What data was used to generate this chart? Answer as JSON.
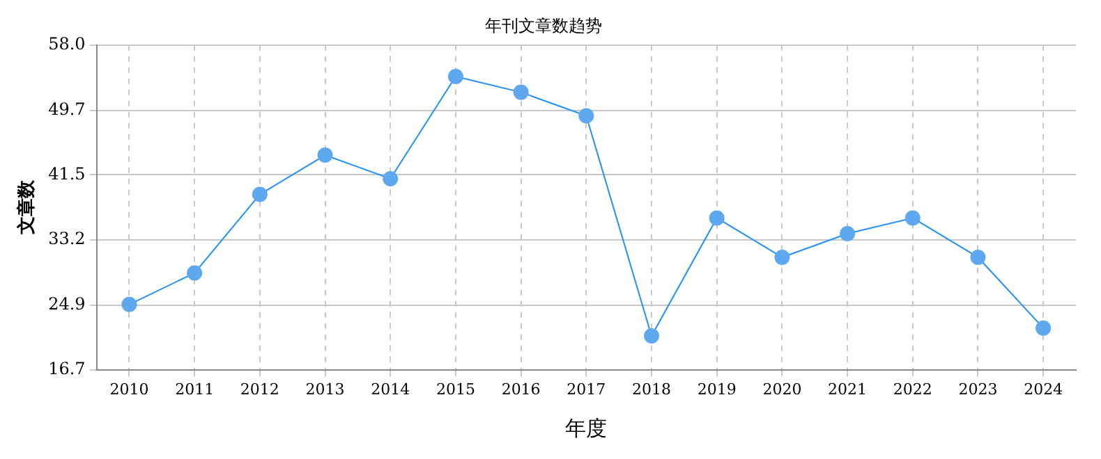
{
  "chart_data": {
    "type": "line",
    "title": "年刊文章数趋势",
    "xlabel": "年度",
    "ylabel": "文章数",
    "categories": [
      "2010",
      "2011",
      "2012",
      "2013",
      "2014",
      "2015",
      "2016",
      "2017",
      "2018",
      "2019",
      "2020",
      "2021",
      "2022",
      "2023",
      "2024"
    ],
    "series": [
      {
        "color": "#1e90ff",
        "values": [
          25,
          29,
          39,
          44,
          41,
          54,
          52,
          49,
          21,
          36,
          31,
          34,
          36,
          31,
          22
        ]
      }
    ],
    "ylim": [
      16.7,
      58
    ],
    "yticks": [
      {
        "value": 16.7,
        "label": "16.7"
      },
      {
        "value": 24.9,
        "label": "24.9"
      },
      {
        "value": 33.2,
        "label": "33.2"
      },
      {
        "value": 41.5,
        "label": "41.5"
      },
      {
        "value": 49.7,
        "label": "49.7"
      },
      {
        "value": 58,
        "label": "58.0"
      }
    ],
    "grid": true,
    "marker": "circle",
    "line_style": "solid",
    "legend": false
  }
}
